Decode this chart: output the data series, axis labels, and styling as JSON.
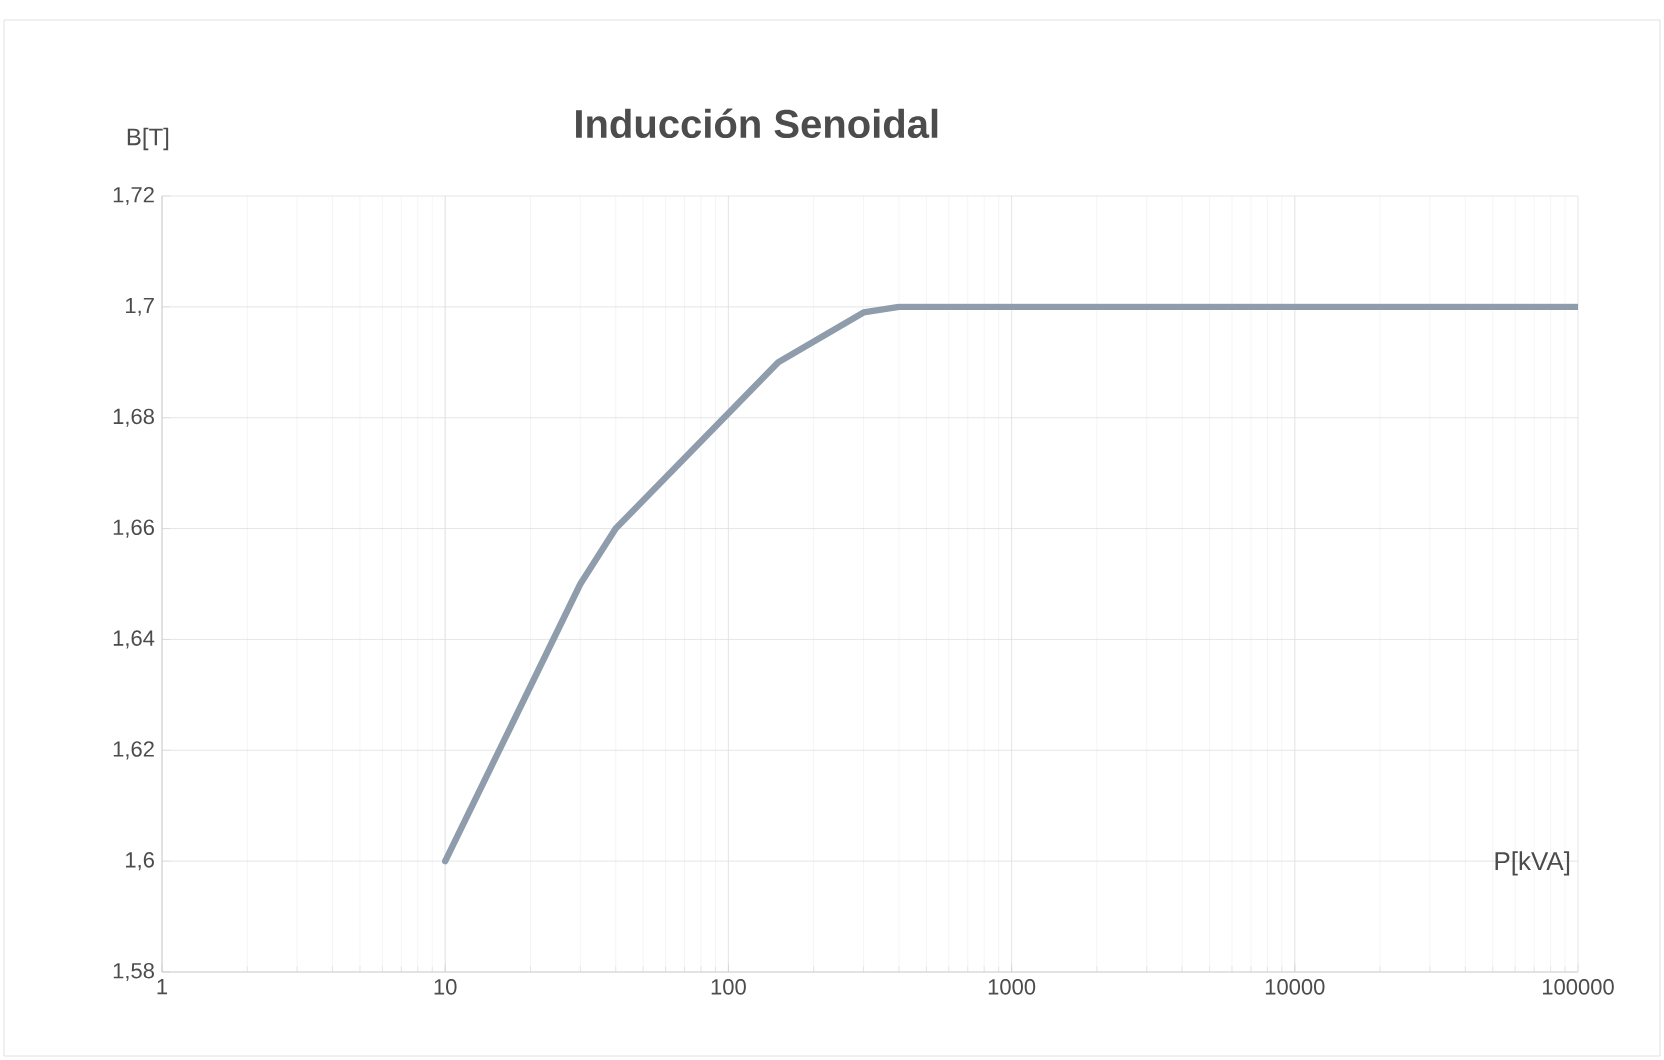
{
  "chart_data": {
    "type": "line",
    "title": "Inducción Senoidal",
    "xlabel": "P[kVA]",
    "ylabel": "B[T]",
    "log": "x",
    "grid": true,
    "x": [
      10,
      30,
      40,
      150,
      300,
      400,
      100000
    ],
    "series": [
      {
        "color": "#8e9cab",
        "values": [
          1.6,
          1.65,
          1.66,
          1.69,
          1.699,
          1.7,
          1.7
        ]
      }
    ],
    "xlim": [
      1,
      100000
    ],
    "xticks": [
      1,
      10,
      100,
      1000,
      10000,
      100000
    ],
    "ylim": [
      1.58,
      1.72
    ],
    "yticks": [
      {
        "value": 1.58,
        "label": "1,58"
      },
      {
        "value": 1.6,
        "label": "1,6"
      },
      {
        "value": 1.62,
        "label": "1,62"
      },
      {
        "value": 1.64,
        "label": "1,64"
      },
      {
        "value": 1.66,
        "label": "1,66"
      },
      {
        "value": 1.68,
        "label": "1,68"
      },
      {
        "value": 1.7,
        "label": "1,7"
      },
      {
        "value": 1.72,
        "label": "1,72"
      }
    ],
    "marker": "none",
    "line_style": "solid"
  }
}
